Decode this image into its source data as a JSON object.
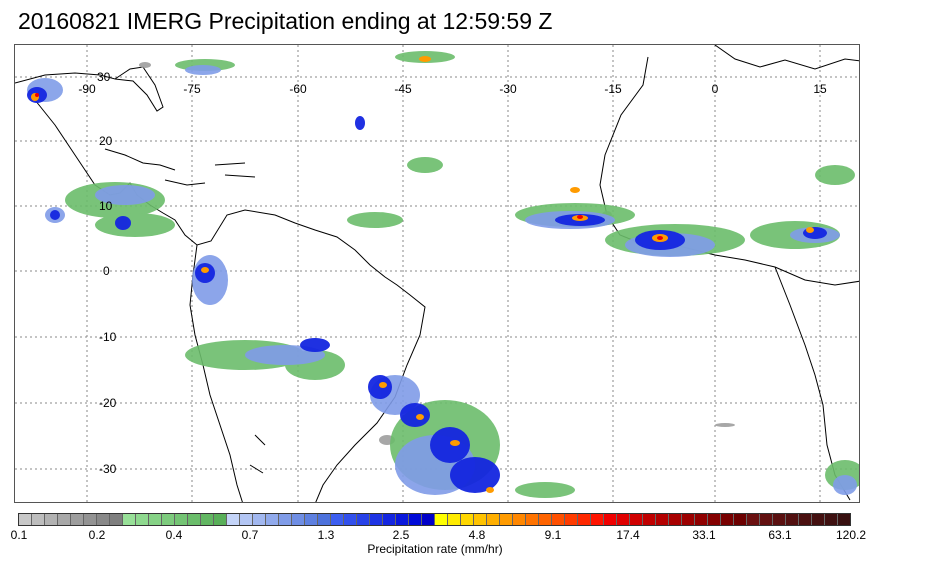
{
  "title": "20160821 IMERG Precipitation ending at 12:59:59 Z",
  "map": {
    "longitude_labels": [
      "-90",
      "-75",
      "-60",
      "-45",
      "-30",
      "-15",
      "0",
      "15"
    ],
    "latitude_labels": [
      "30",
      "20",
      "10",
      "0",
      "-10",
      "-20",
      "-30"
    ]
  },
  "colorbar": {
    "tick_labels": [
      "0.1",
      "0.2",
      "0.4",
      "0.7",
      "1.3",
      "2.5",
      "4.8",
      "9.1",
      "17.4",
      "33.1",
      "63.1",
      "120.2"
    ],
    "axis_label": "Precipitation rate (mm/hr)",
    "colors": [
      "#c8c8c8",
      "#bdbdbd",
      "#b2b2b2",
      "#a8a8a8",
      "#9d9d9d",
      "#939393",
      "#898989",
      "#7f7f7f",
      "#98e098",
      "#8fd98f",
      "#86d286",
      "#7dcb7d",
      "#74c474",
      "#6bbd6b",
      "#62b662",
      "#59af59",
      "#c4d4f8",
      "#b3c6f4",
      "#a2b8f0",
      "#91aaec",
      "#809ce8",
      "#6f8ee4",
      "#5e80e0",
      "#4d72dc",
      "#3c5ef0",
      "#3250ec",
      "#2842e8",
      "#1e34e4",
      "#1426e0",
      "#0a18dc",
      "#000ad8",
      "#0000c8",
      "#ffff00",
      "#ffeb00",
      "#ffd700",
      "#ffc300",
      "#ffaf00",
      "#ff9b00",
      "#ff8700",
      "#ff7300",
      "#ff6400",
      "#ff5000",
      "#ff3c00",
      "#ff2800",
      "#ff1400",
      "#f00000",
      "#e00000",
      "#d00000",
      "#c00000",
      "#b40000",
      "#a80000",
      "#9c0000",
      "#900000",
      "#840000",
      "#780000",
      "#6c0000",
      "#6a1010",
      "#621010",
      "#5a1010",
      "#521010",
      "#4a1010",
      "#441010",
      "#3e1010",
      "#381010"
    ]
  }
}
